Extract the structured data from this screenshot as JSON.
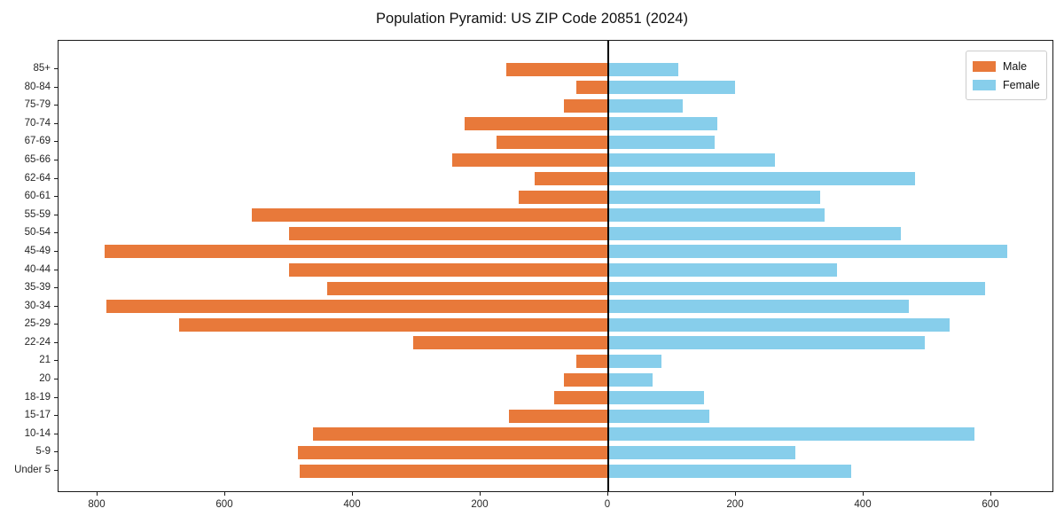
{
  "chart_data": {
    "type": "bar",
    "variant": "population-pyramid",
    "orientation": "horizontal",
    "title": "Population Pyramid: US ZIP Code 20851 (2024)",
    "categories": [
      "85+",
      "80-84",
      "75-79",
      "70-74",
      "67-69",
      "65-66",
      "62-64",
      "60-61",
      "55-59",
      "50-54",
      "45-49",
      "40-44",
      "35-39",
      "30-34",
      "25-29",
      "22-24",
      "21",
      "20",
      "18-19",
      "15-17",
      "10-14",
      "5-9",
      "Under 5"
    ],
    "series": [
      {
        "name": "Male",
        "side": "left",
        "color": "#e8793a",
        "values": [
          160,
          50,
          70,
          225,
          175,
          245,
          115,
          140,
          558,
          500,
          789,
          500,
          440,
          786,
          672,
          305,
          50,
          70,
          85,
          156,
          462,
          486,
          483
        ]
      },
      {
        "name": "Female",
        "side": "right",
        "color": "#87ceeb",
        "values": [
          108,
          197,
          115,
          170,
          165,
          260,
          479,
          331,
          338,
          457,
          624,
          357,
          589,
          469,
          534,
          494,
          82,
          68,
          149,
          157,
          572,
          292,
          379
        ]
      }
    ],
    "x_axis": {
      "tick_values": [
        -800,
        -600,
        -400,
        -200,
        0,
        200,
        400,
        600
      ],
      "tick_labels": [
        "800",
        "600",
        "400",
        "200",
        "0",
        "200",
        "400",
        "600"
      ],
      "xlim": [
        -861,
        699
      ]
    },
    "y_axis": {
      "label": "",
      "order": "oldest-top"
    },
    "legend": {
      "position": "upper-right",
      "entries": [
        {
          "label": "Male",
          "color": "#e8793a"
        },
        {
          "label": "Female",
          "color": "#87ceeb"
        }
      ]
    },
    "grid": false,
    "zero_line": true
  }
}
